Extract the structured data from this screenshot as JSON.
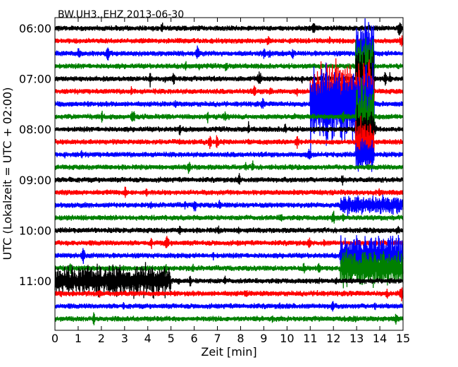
{
  "chart_data": {
    "type": "line",
    "title": "BW.UH3..EHZ 2013-06-30",
    "xlabel": "Zeit  [min]",
    "ylabel": "UTC (Lokalzeit = UTC + 02:00)",
    "xlim": [
      0,
      15
    ],
    "x_ticks": [
      "0",
      "1",
      "2",
      "3",
      "4",
      "5",
      "6",
      "7",
      "8",
      "9",
      "10",
      "11",
      "12",
      "13",
      "14",
      "15"
    ],
    "y_ticks": [
      "06:00",
      "07:00",
      "08:00",
      "09:00",
      "10:00",
      "11:00"
    ],
    "trace_count": 24,
    "trace_start": "06:00",
    "trace_interval_min": 15,
    "grid": false,
    "legend": "none",
    "colors": [
      "#000000",
      "#ff0000",
      "#0000ff",
      "#008000"
    ],
    "events": [
      {
        "trace": 2,
        "x_min": 12.95,
        "x_max": 13.75,
        "amplitude": 3.5
      },
      {
        "trace": 3,
        "x_min": 12.95,
        "x_max": 13.75,
        "amplitude": 3.2
      },
      {
        "trace": 4,
        "x_min": 12.95,
        "x_max": 13.75,
        "amplitude": 3.2
      },
      {
        "trace": 5,
        "x_min": 11.0,
        "x_max": 13.75,
        "amplitude": 2.8
      },
      {
        "trace": 6,
        "x_min": 11.0,
        "x_max": 13.75,
        "amplitude": 3.8
      },
      {
        "trace": 7,
        "x_min": 12.95,
        "x_max": 13.75,
        "amplitude": 3.2
      },
      {
        "trace": 8,
        "x_min": 12.95,
        "x_max": 13.75,
        "amplitude": 2.0
      },
      {
        "trace": 9,
        "x_min": 12.95,
        "x_max": 13.75,
        "amplitude": 2.2
      },
      {
        "trace": 10,
        "x_min": 12.95,
        "x_max": 13.75,
        "amplitude": 1.5
      },
      {
        "trace": 14,
        "x_min": 12.3,
        "x_max": 15.0,
        "amplitude": 1.0
      },
      {
        "trace": 18,
        "x_min": 12.3,
        "x_max": 15.0,
        "amplitude": 1.8
      },
      {
        "trace": 19,
        "x_min": 12.3,
        "x_max": 15.0,
        "amplitude": 1.8
      },
      {
        "trace": 20,
        "x_min": 0.0,
        "x_max": 5.0,
        "amplitude": 1.5
      }
    ]
  }
}
